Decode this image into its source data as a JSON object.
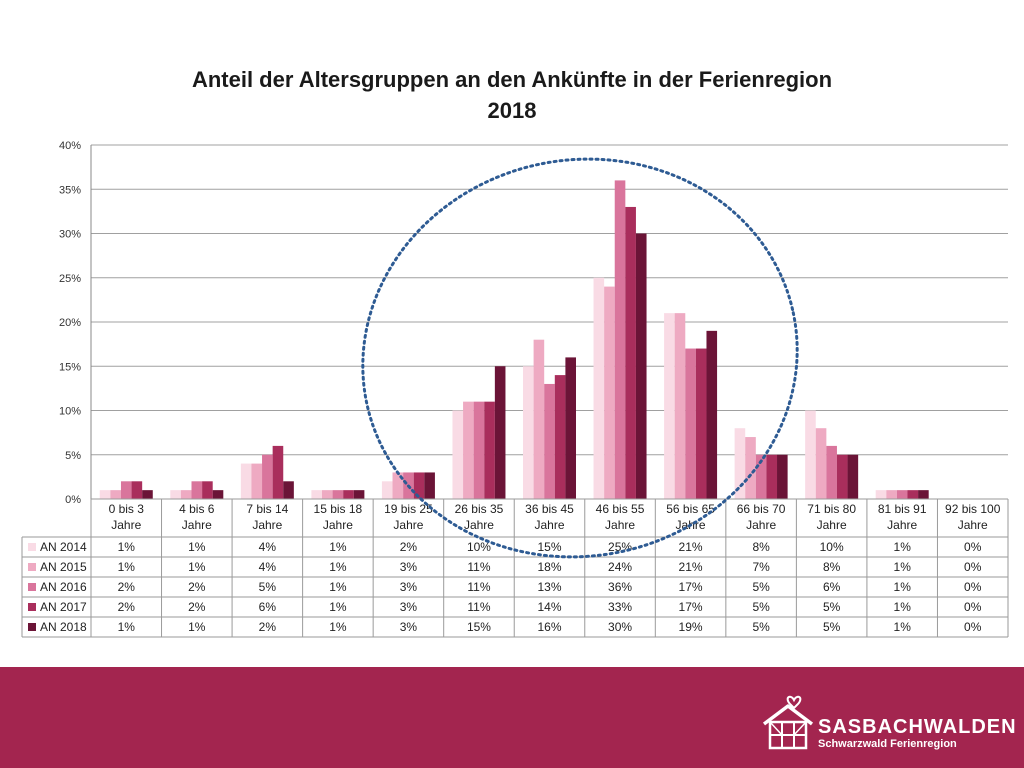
{
  "chart_data": {
    "type": "bar",
    "title_line1": "Anteil der Altersgruppen an den Ankünfte in der Ferienregion",
    "title_line2": "2018",
    "y_ticks": [
      "0%",
      "5%",
      "10%",
      "15%",
      "20%",
      "25%",
      "30%",
      "35%",
      "40%"
    ],
    "ylim": [
      0,
      40
    ],
    "grid": true,
    "legend": "table-below",
    "categories": [
      [
        "0 bis 3",
        "Jahre"
      ],
      [
        "4 bis 6",
        "Jahre"
      ],
      [
        "7 bis 14",
        "Jahre"
      ],
      [
        "15 bis 18",
        "Jahre"
      ],
      [
        "19 bis 25",
        "Jahre"
      ],
      [
        "26 bis 35",
        "Jahre"
      ],
      [
        "36 bis 45",
        "Jahre"
      ],
      [
        "46 bis 55",
        "Jahre"
      ],
      [
        "56 bis 65",
        "Jahre"
      ],
      [
        "66 bis 70",
        "Jahre"
      ],
      [
        "71 bis 80",
        "Jahre"
      ],
      [
        "81 bis 91",
        "Jahre"
      ],
      [
        "92 bis 100",
        "Jahre"
      ]
    ],
    "series": [
      {
        "name": "AN 2014",
        "color": "#f9dbe5",
        "values": [
          1,
          1,
          4,
          1,
          2,
          10,
          15,
          25,
          21,
          8,
          10,
          1,
          0
        ]
      },
      {
        "name": "AN 2015",
        "color": "#eeaac2",
        "values": [
          1,
          1,
          4,
          1,
          3,
          11,
          18,
          24,
          21,
          7,
          8,
          1,
          0
        ]
      },
      {
        "name": "AN 2016",
        "color": "#d9759c",
        "values": [
          2,
          2,
          5,
          1,
          3,
          11,
          13,
          36,
          17,
          5,
          6,
          1,
          0
        ]
      },
      {
        "name": "AN 2017",
        "color": "#a92e5c",
        "values": [
          2,
          2,
          6,
          1,
          3,
          11,
          14,
          33,
          17,
          5,
          5,
          1,
          0
        ]
      },
      {
        "name": "AN 2018",
        "color": "#6b1437",
        "values": [
          1,
          1,
          2,
          1,
          3,
          15,
          16,
          30,
          19,
          5,
          5,
          1,
          0
        ]
      }
    ],
    "annotation_color": "#2e5b93"
  },
  "footer": {
    "background": "#a3254f",
    "logo_name": "SASBACHWALDEN",
    "logo_subtitle": "Schwarzwald Ferienregion"
  }
}
